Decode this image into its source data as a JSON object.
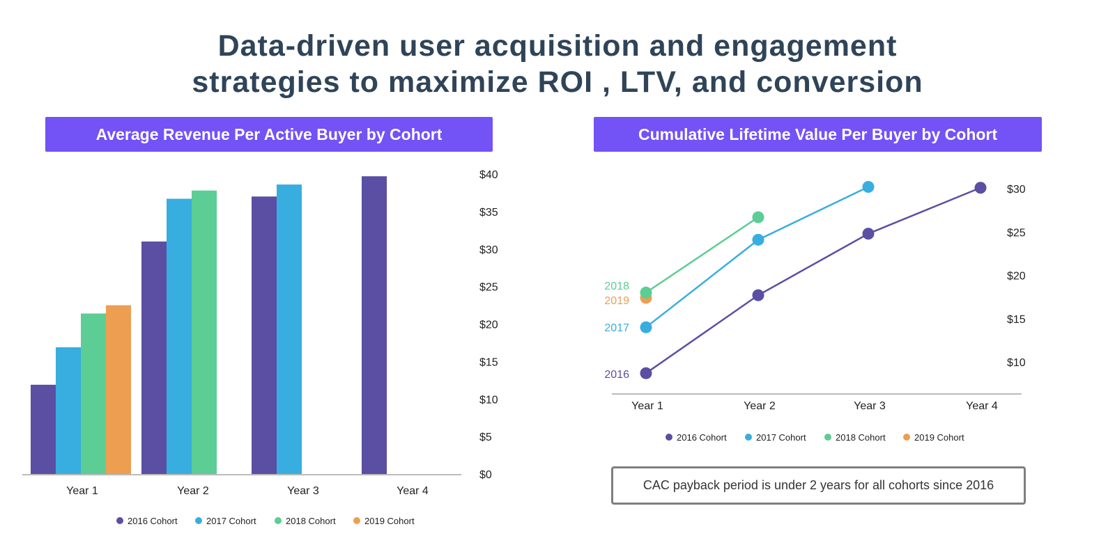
{
  "title_line1": "Data-driven user acquisition and engagement",
  "title_line2": "strategies  to maximize ROI , LTV, and conversion",
  "colors": {
    "2016 Cohort": "#5a4fa3",
    "2017 Cohort": "#37aedf",
    "2018 Cohort": "#5ccd94",
    "2019 Cohort": "#ee9e50",
    "banner": "#7352f6"
  },
  "callout": "CAC payback period is under 2 years for all cohorts since 2016",
  "chart_data": [
    {
      "type": "bar",
      "title": "Average Revenue Per Active Buyer by Cohort",
      "categories": [
        "Year 1",
        "Year 2",
        "Year 3",
        "Year 4"
      ],
      "series": [
        {
          "name": "2016 Cohort",
          "values": [
            11.9,
            31.0,
            37.0,
            39.7
          ]
        },
        {
          "name": "2017 Cohort",
          "values": [
            16.9,
            36.7,
            38.6,
            null
          ]
        },
        {
          "name": "2018 Cohort",
          "values": [
            21.4,
            37.8,
            null,
            null
          ]
        },
        {
          "name": "2019 Cohort",
          "values": [
            22.5,
            null,
            null,
            null
          ]
        }
      ],
      "yticks": [
        "$0",
        "$5",
        "$10",
        "$15",
        "$20",
        "$25",
        "$30",
        "$35",
        "$40"
      ],
      "ylim": [
        0,
        40
      ],
      "y_axis_position": "right",
      "legend": "bottom"
    },
    {
      "type": "line",
      "title": "Cumulative Lifetime Value Per Buyer by Cohort",
      "categories": [
        "Year 1",
        "Year 2",
        "Year 3",
        "Year 4"
      ],
      "series": [
        {
          "name": "2016 Cohort",
          "label": "2016",
          "values": [
            8.7,
            17.7,
            24.8,
            30.1
          ]
        },
        {
          "name": "2017 Cohort",
          "label": "2017",
          "values": [
            14.0,
            24.1,
            30.2,
            null
          ]
        },
        {
          "name": "2018 Cohort",
          "label": "2018",
          "values": [
            18.0,
            26.7,
            null,
            null
          ]
        },
        {
          "name": "2019 Cohort",
          "label": "2019",
          "values": [
            17.4,
            null,
            null,
            null
          ]
        }
      ],
      "yticks": [
        "$10",
        "$15",
        "$20",
        "$25",
        "$30"
      ],
      "ytick_values": [
        10,
        15,
        20,
        25,
        30
      ],
      "ylim": [
        6.3,
        30.5
      ],
      "y_axis_position": "right",
      "legend": "bottom"
    }
  ]
}
